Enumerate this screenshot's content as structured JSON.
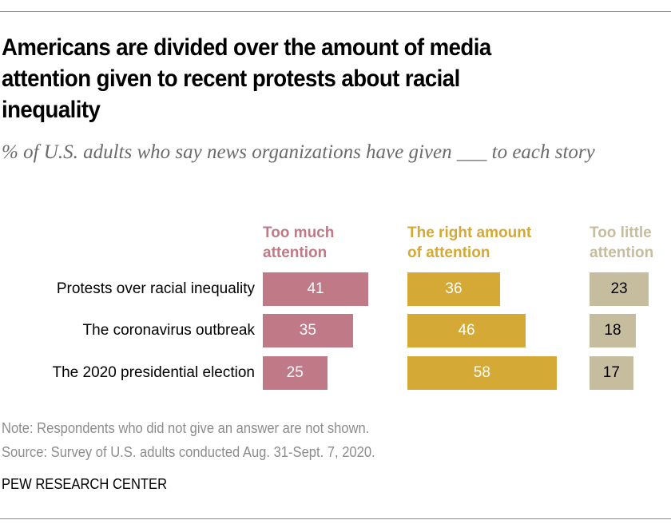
{
  "title": "Americans are divided over the amount of media attention given to recent protests about racial inequality",
  "subtitle": "% of U.S. adults who say news organizations have given ___ to each story",
  "note": "Note: Respondents who did not give an answer are not shown.",
  "source": "Source: Survey of U.S. adults conducted Aug. 31-Sept. 7, 2020.",
  "brand": "PEW RESEARCH CENTER",
  "colors": {
    "too_much": "#c07a87",
    "right_amount": "#d4a935",
    "too_little": "#c6bc9e"
  },
  "chart_data": {
    "type": "bar",
    "orientation": "horizontal",
    "title": "Americans are divided over the amount of media attention given to recent protests about racial inequality",
    "subtitle": "% of U.S. adults who say news organizations have given ___ to each story",
    "xlabel": "",
    "ylabel": "",
    "grid": false,
    "categories": [
      "Protests over racial inequality",
      "The coronavirus outbreak",
      "The 2020 presidential election"
    ],
    "series": [
      {
        "name": "Too much attention",
        "header_lines": "Too much\nattention",
        "color": "#c07a87",
        "label_color": "#ffffff",
        "values": [
          41,
          35,
          25
        ]
      },
      {
        "name": "The right amount of attention",
        "header_lines": "The right amount\nof attention",
        "color": "#d4a935",
        "label_color": "#ffffff",
        "values": [
          36,
          46,
          58
        ]
      },
      {
        "name": "Too little attention",
        "header_lines": "Too little\nattention",
        "color": "#c6bc9e",
        "label_color": "#000000",
        "values": [
          23,
          18,
          17
        ]
      }
    ],
    "xlim": [
      0,
      100
    ]
  }
}
